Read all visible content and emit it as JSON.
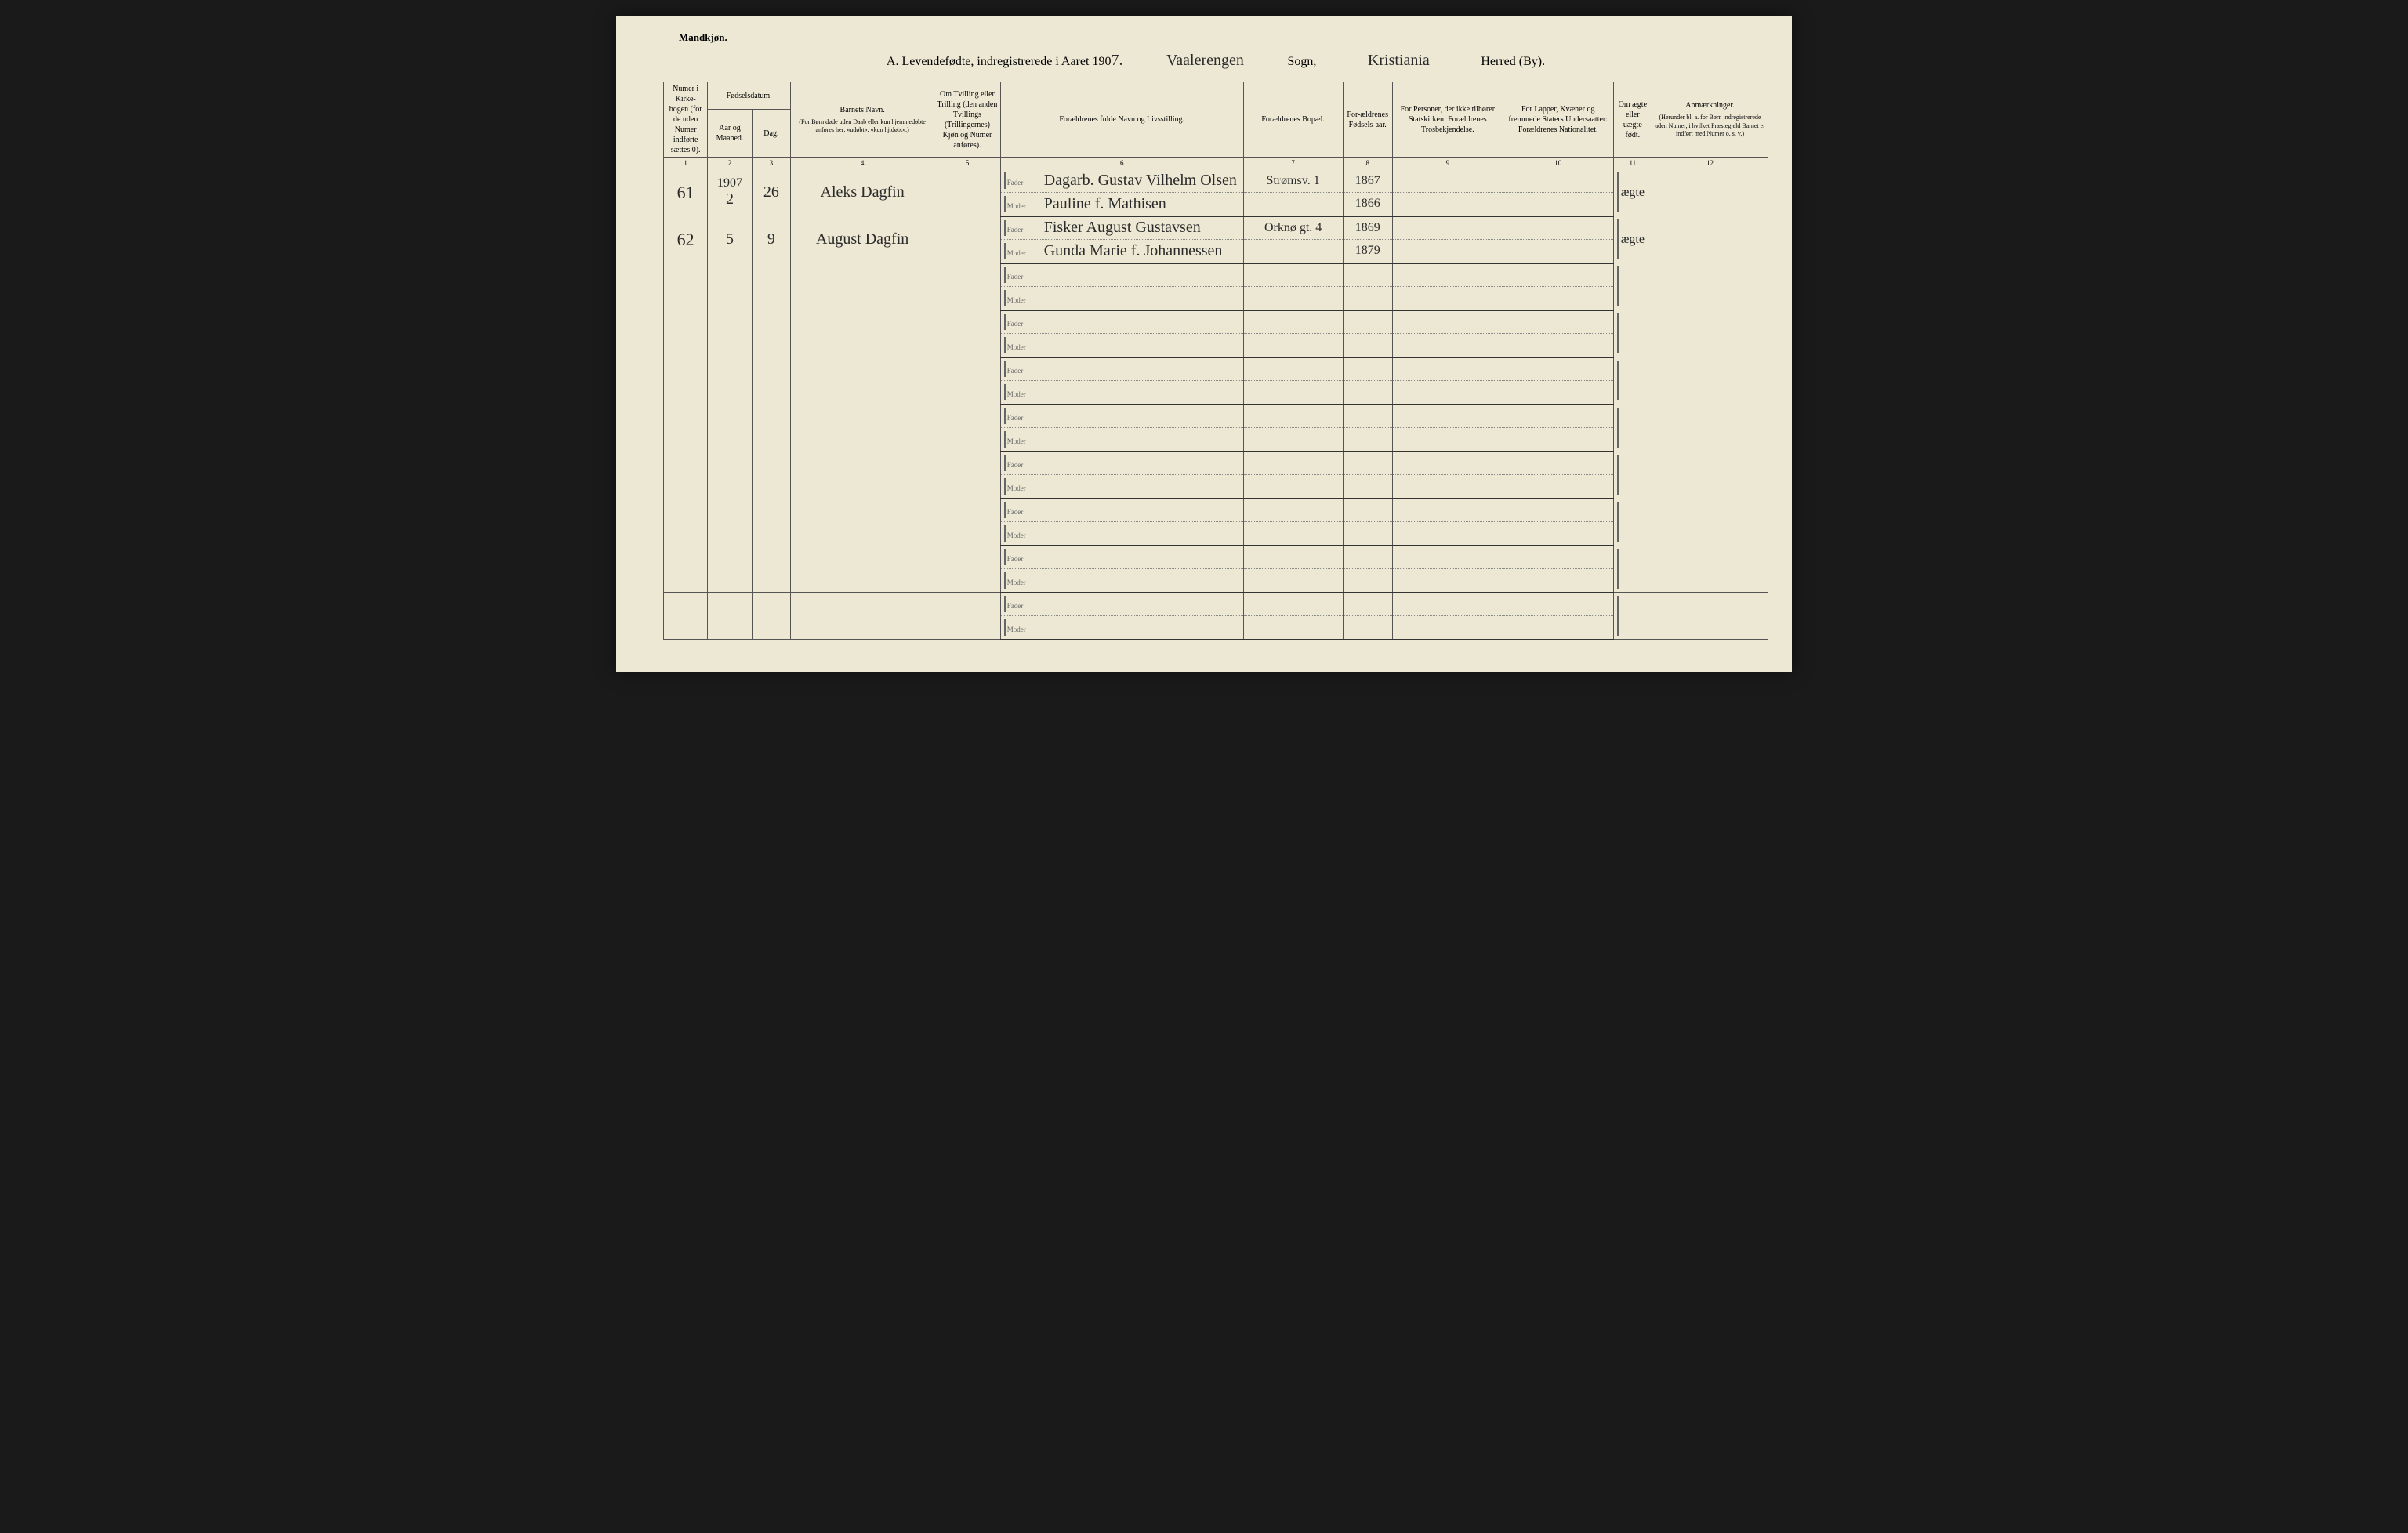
{
  "gender_label": "Mandkjøn.",
  "title": {
    "prefix": "A.  Levendefødte, indregistrerede i Aaret 190",
    "year_suffix": "7.",
    "sogn_value": "Vaalerengen",
    "sogn_label": "Sogn,",
    "herred_value": "Kristiania",
    "herred_label": "Herred (By)."
  },
  "headers": {
    "c1": "Numer i Kirke-bogen (for de uden Numer indførte sættes 0).",
    "c2": "Fødselsdatum.",
    "c2a": "Aar og Maaned.",
    "c2b": "Dag.",
    "c4": "Barnets Navn.",
    "c4_sub": "(For Børn døde uden Daab eller kun hjemmedøbte anføres her: «udøbt», «kun hj.døbt».)",
    "c5": "Om Tvilling eller Trilling (den anden Tvillings (Trillingernes) Kjøn og Numer anføres).",
    "c6": "Forældrenes fulde Navn og Livsstilling.",
    "c7": "Forældrenes Bopæl.",
    "c8": "For-ældrenes Fødsels-aar.",
    "c9": "For Personer, der ikke tilhører Statskirken: Forældrenes Trosbekjendelse.",
    "c10": "For Lapper, Kvæner og fremmede Staters Undersaatter: Forældrenes Nationalitet.",
    "c11": "Om ægte eller uægte født.",
    "c12": "Anmærkninger.",
    "c12_sub": "(Herunder bl. a. for Børn indregistrerede uden Numer, i hvilket Præstegjeld Barnet er indført med Numer o. s. v.)"
  },
  "col_nums": [
    "1",
    "2",
    "3",
    "4",
    "5",
    "6",
    "7",
    "8",
    "9",
    "10",
    "11",
    "12"
  ],
  "fader_label": "Fader",
  "moder_label": "Moder",
  "year_header": "1907",
  "entries": [
    {
      "num": "61",
      "month": "2",
      "day": "26",
      "name": "Aleks Dagfin",
      "fader": "Dagarb. Gustav Vilhelm Olsen",
      "moder": "Pauline f. Mathisen",
      "bopael": "Strømsv. 1",
      "fader_year": "1867",
      "moder_year": "1866",
      "aegte": "ægte"
    },
    {
      "num": "62",
      "month": "5",
      "day": "9",
      "name": "August Dagfin",
      "fader": "Fisker August Gustavsen",
      "moder": "Gunda Marie f. Johannessen",
      "bopael": "Orknø gt. 4",
      "fader_year": "1869",
      "moder_year": "1879",
      "aegte": "ægte"
    }
  ],
  "colors": {
    "page_bg": "#ede8d4",
    "border": "#555555",
    "ink": "#2a2a2a"
  },
  "col_widths_pct": [
    4,
    4,
    3.5,
    13,
    6,
    22,
    9,
    4.5,
    10,
    10,
    3.5,
    10.5
  ],
  "empty_row_count": 8
}
